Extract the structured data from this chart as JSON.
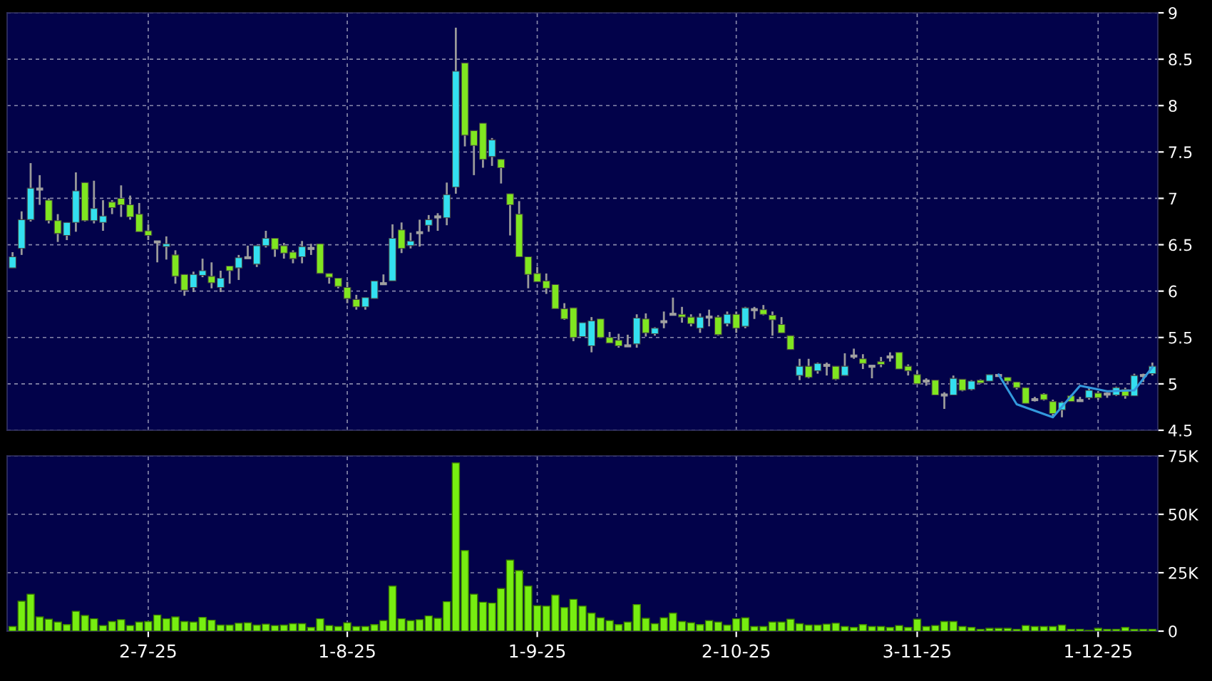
{
  "chart_data": [
    {
      "type": "candlestick",
      "categories": [
        null,
        null,
        null,
        null,
        null,
        null,
        null,
        null,
        null,
        null,
        null,
        null,
        null,
        null,
        null,
        null,
        null,
        null,
        null,
        null,
        null,
        null,
        null,
        null,
        null,
        null,
        null,
        null,
        null,
        null,
        null,
        null,
        null,
        null,
        null,
        null,
        null,
        null,
        null,
        null,
        null,
        null,
        null,
        null,
        null,
        null,
        null,
        null,
        null,
        null,
        null,
        null,
        null,
        null,
        null,
        null,
        null,
        null,
        null,
        null,
        null,
        null,
        null,
        null,
        null,
        null,
        null,
        null,
        null,
        null,
        null,
        null,
        null,
        null,
        null,
        null,
        null,
        null,
        null,
        null,
        null,
        null,
        null,
        null,
        null,
        null,
        null,
        null,
        null,
        null,
        null,
        null,
        null,
        null,
        null,
        null,
        null,
        null,
        null,
        null,
        null,
        null,
        null,
        null,
        null,
        null,
        null,
        null,
        null,
        null,
        null,
        null,
        null,
        null,
        null,
        null,
        null,
        null,
        null,
        null,
        null,
        null,
        null,
        null,
        null,
        null,
        null
      ],
      "ohlc": [
        [
          6.25,
          6.42,
          6.25,
          6.37
        ],
        [
          6.46,
          6.86,
          6.39,
          6.77
        ],
        [
          6.77,
          7.38,
          6.75,
          7.11
        ],
        [
          7.1,
          7.25,
          6.93,
          7.1
        ],
        [
          6.98,
          7.0,
          6.73,
          6.76
        ],
        [
          6.76,
          6.83,
          6.53,
          6.62
        ],
        [
          6.6,
          6.74,
          6.55,
          6.74
        ],
        [
          6.74,
          7.28,
          6.64,
          7.08
        ],
        [
          7.17,
          7.17,
          6.75,
          6.76
        ],
        [
          6.76,
          7.19,
          6.73,
          6.89
        ],
        [
          6.74,
          6.98,
          6.65,
          6.81
        ],
        [
          6.96,
          6.98,
          6.83,
          6.9
        ],
        [
          7.0,
          7.14,
          6.8,
          6.93
        ],
        [
          6.93,
          7.03,
          6.77,
          6.8
        ],
        [
          6.83,
          6.95,
          6.64,
          6.64
        ],
        [
          6.65,
          6.72,
          6.55,
          6.6
        ],
        [
          6.53,
          6.54,
          6.31,
          6.53
        ],
        [
          6.48,
          6.59,
          6.34,
          6.51
        ],
        [
          6.39,
          6.44,
          6.08,
          6.16
        ],
        [
          6.18,
          6.18,
          5.95,
          6.01
        ],
        [
          6.04,
          6.21,
          5.99,
          6.18
        ],
        [
          6.17,
          6.35,
          6.15,
          6.22
        ],
        [
          6.16,
          6.31,
          6.03,
          6.09
        ],
        [
          6.04,
          6.22,
          5.99,
          6.14
        ],
        [
          6.27,
          6.27,
          6.08,
          6.22
        ],
        [
          6.25,
          6.39,
          6.12,
          6.36
        ],
        [
          6.36,
          6.49,
          6.35,
          6.36
        ],
        [
          6.29,
          6.49,
          6.26,
          6.49
        ],
        [
          6.49,
          6.65,
          6.47,
          6.57
        ],
        [
          6.57,
          6.57,
          6.37,
          6.45
        ],
        [
          6.49,
          6.52,
          6.35,
          6.41
        ],
        [
          6.42,
          6.44,
          6.3,
          6.35
        ],
        [
          6.37,
          6.54,
          6.3,
          6.48
        ],
        [
          6.46,
          6.51,
          6.39,
          6.46
        ],
        [
          6.51,
          6.51,
          6.19,
          6.19
        ],
        [
          6.19,
          6.19,
          6.08,
          6.15
        ],
        [
          6.14,
          6.14,
          6.03,
          6.05
        ],
        [
          6.04,
          6.1,
          5.87,
          5.92
        ],
        [
          5.91,
          5.96,
          5.8,
          5.83
        ],
        [
          5.83,
          5.93,
          5.8,
          5.93
        ],
        [
          5.92,
          6.11,
          5.92,
          6.11
        ],
        [
          6.08,
          6.18,
          6.08,
          6.08
        ],
        [
          6.11,
          6.72,
          6.11,
          6.57
        ],
        [
          6.66,
          6.74,
          6.41,
          6.46
        ],
        [
          6.49,
          6.63,
          6.46,
          6.54
        ],
        [
          6.63,
          6.77,
          6.48,
          6.63
        ],
        [
          6.71,
          6.82,
          6.64,
          6.77
        ],
        [
          6.8,
          6.84,
          6.65,
          6.8
        ],
        [
          6.79,
          7.17,
          6.71,
          7.04
        ],
        [
          7.12,
          8.84,
          7.05,
          8.37
        ],
        [
          8.46,
          8.46,
          7.56,
          7.68
        ],
        [
          7.73,
          7.73,
          7.25,
          7.57
        ],
        [
          7.81,
          7.81,
          7.33,
          7.42
        ],
        [
          7.45,
          7.65,
          7.35,
          7.63
        ],
        [
          7.42,
          7.42,
          7.16,
          7.33
        ],
        [
          7.05,
          7.05,
          6.6,
          6.93
        ],
        [
          6.83,
          6.97,
          6.37,
          6.37
        ],
        [
          6.37,
          6.37,
          6.03,
          6.18
        ],
        [
          6.19,
          6.26,
          6.1,
          6.1
        ],
        [
          6.11,
          6.19,
          5.97,
          6.03
        ],
        [
          6.07,
          6.07,
          5.81,
          5.81
        ],
        [
          5.81,
          5.87,
          5.69,
          5.7
        ],
        [
          5.82,
          5.82,
          5.46,
          5.5
        ],
        [
          5.51,
          5.66,
          5.51,
          5.66
        ],
        [
          5.41,
          5.72,
          5.34,
          5.68
        ],
        [
          5.7,
          5.7,
          5.5,
          5.5
        ],
        [
          5.5,
          5.56,
          5.44,
          5.44
        ],
        [
          5.47,
          5.54,
          5.39,
          5.41
        ],
        [
          5.41,
          5.53,
          5.41,
          5.41
        ],
        [
          5.43,
          5.75,
          5.39,
          5.71
        ],
        [
          5.7,
          5.76,
          5.51,
          5.55
        ],
        [
          5.54,
          5.61,
          5.52,
          5.6
        ],
        [
          5.67,
          5.78,
          5.6,
          5.67
        ],
        [
          5.75,
          5.93,
          5.74,
          5.75
        ],
        [
          5.75,
          5.83,
          5.66,
          5.72
        ],
        [
          5.72,
          5.75,
          5.62,
          5.65
        ],
        [
          5.6,
          5.76,
          5.55,
          5.72
        ],
        [
          5.72,
          5.8,
          5.62,
          5.72
        ],
        [
          5.72,
          5.74,
          5.52,
          5.53
        ],
        [
          5.65,
          5.78,
          5.62,
          5.75
        ],
        [
          5.75,
          5.78,
          5.55,
          5.6
        ],
        [
          5.62,
          5.83,
          5.6,
          5.82
        ],
        [
          5.8,
          5.83,
          5.7,
          5.8
        ],
        [
          5.8,
          5.85,
          5.74,
          5.75
        ],
        [
          5.74,
          5.78,
          5.52,
          5.69
        ],
        [
          5.64,
          5.72,
          5.55,
          5.55
        ],
        [
          5.52,
          5.52,
          5.37,
          5.37
        ],
        [
          5.09,
          5.27,
          5.04,
          5.19
        ],
        [
          5.19,
          5.27,
          5.06,
          5.07
        ],
        [
          5.14,
          5.23,
          5.11,
          5.22
        ],
        [
          5.2,
          5.23,
          5.09,
          5.2
        ],
        [
          5.19,
          5.19,
          5.04,
          5.05
        ],
        [
          5.09,
          5.33,
          5.09,
          5.19
        ],
        [
          5.3,
          5.38,
          5.27,
          5.3
        ],
        [
          5.27,
          5.32,
          5.16,
          5.22
        ],
        [
          5.19,
          5.2,
          5.06,
          5.19
        ],
        [
          5.24,
          5.29,
          5.18,
          5.21
        ],
        [
          5.29,
          5.34,
          5.24,
          5.29
        ],
        [
          5.34,
          5.34,
          5.16,
          5.16
        ],
        [
          5.19,
          5.21,
          5.09,
          5.14
        ],
        [
          5.1,
          5.14,
          5.0,
          5.0
        ],
        [
          5.03,
          5.06,
          4.98,
          5.03
        ],
        [
          5.04,
          5.04,
          4.88,
          4.88
        ],
        [
          4.88,
          4.91,
          4.73,
          4.88
        ],
        [
          4.88,
          5.09,
          4.88,
          5.06
        ],
        [
          5.05,
          5.05,
          4.92,
          4.93
        ],
        [
          4.94,
          5.04,
          4.93,
          5.03
        ],
        [
          5.04,
          5.05,
          5.0,
          5.01
        ],
        [
          5.03,
          5.1,
          5.03,
          5.1
        ],
        [
          5.09,
          5.1,
          5.08,
          5.09
        ],
        [
          5.07,
          5.07,
          5.01,
          5.03
        ],
        [
          5.02,
          5.02,
          4.94,
          4.96
        ],
        [
          4.96,
          4.96,
          4.79,
          4.79
        ],
        [
          4.83,
          4.86,
          4.81,
          4.83
        ],
        [
          4.89,
          4.9,
          4.82,
          4.83
        ],
        [
          4.81,
          4.83,
          4.65,
          4.68
        ],
        [
          4.72,
          4.81,
          4.64,
          4.8
        ],
        [
          4.87,
          4.88,
          4.81,
          4.81
        ],
        [
          4.82,
          4.86,
          4.81,
          4.82
        ],
        [
          4.85,
          4.96,
          4.83,
          4.93
        ],
        [
          4.9,
          4.92,
          4.83,
          4.85
        ],
        [
          4.89,
          4.91,
          4.85,
          4.89
        ],
        [
          4.88,
          4.97,
          4.87,
          4.96
        ],
        [
          4.94,
          4.96,
          4.84,
          4.87
        ],
        [
          4.87,
          5.11,
          4.87,
          5.09
        ],
        [
          5.09,
          5.11,
          5.02,
          5.09
        ],
        [
          5.11,
          5.23,
          5.09,
          5.19
        ]
      ],
      "colors": [
        "#33e0f0",
        "#33e0f0",
        "#33e0f0",
        "#a0a0a0",
        "#80e620",
        "#80e620",
        "#33e0f0",
        "#33e0f0",
        "#80e620",
        "#33e0f0",
        "#33e0f0",
        "#80e620",
        "#80e620",
        "#80e620",
        "#80e620",
        "#80e620",
        "#a0a0a0",
        "#33e0f0",
        "#80e620",
        "#80e620",
        "#33e0f0",
        "#33e0f0",
        "#80e620",
        "#33e0f0",
        "#80e620",
        "#33e0f0",
        "#a0a0a0",
        "#33e0f0",
        "#33e0f0",
        "#80e620",
        "#80e620",
        "#80e620",
        "#33e0f0",
        "#a0a0a0",
        "#80e620",
        "#80e620",
        "#80e620",
        "#80e620",
        "#80e620",
        "#33e0f0",
        "#33e0f0",
        "#a0a0a0",
        "#33e0f0",
        "#80e620",
        "#33e0f0",
        "#a0a0a0",
        "#33e0f0",
        "#a0a0a0",
        "#33e0f0",
        "#33e0f0",
        "#80e620",
        "#80e620",
        "#80e620",
        "#33e0f0",
        "#80e620",
        "#80e620",
        "#80e620",
        "#80e620",
        "#80e620",
        "#80e620",
        "#80e620",
        "#80e620",
        "#80e620",
        "#33e0f0",
        "#33e0f0",
        "#80e620",
        "#80e620",
        "#80e620",
        "#a0a0a0",
        "#33e0f0",
        "#80e620",
        "#33e0f0",
        "#a0a0a0",
        "#a0a0a0",
        "#80e620",
        "#80e620",
        "#33e0f0",
        "#a0a0a0",
        "#80e620",
        "#33e0f0",
        "#80e620",
        "#33e0f0",
        "#a0a0a0",
        "#80e620",
        "#80e620",
        "#80e620",
        "#80e620",
        "#33e0f0",
        "#80e620",
        "#33e0f0",
        "#a0a0a0",
        "#80e620",
        "#33e0f0",
        "#a0a0a0",
        "#80e620",
        "#a0a0a0",
        "#80e620",
        "#a0a0a0",
        "#80e620",
        "#80e620",
        "#80e620",
        "#a0a0a0",
        "#80e620",
        "#a0a0a0",
        "#33e0f0",
        "#80e620",
        "#33e0f0",
        "#80e620",
        "#33e0f0",
        "#a0a0a0",
        "#80e620",
        "#80e620",
        "#80e620",
        "#a0a0a0",
        "#80e620",
        "#80e620",
        "#33e0f0",
        "#80e620",
        "#a0a0a0",
        "#33e0f0",
        "#80e620",
        "#a0a0a0",
        "#33e0f0",
        "#80e620",
        "#33e0f0",
        "#a0a0a0",
        "#33e0f0"
      ],
      "series": [
        {
          "type": "line",
          "color": "#3399dd",
          "values": [
            null,
            null,
            null,
            null,
            null,
            null,
            null,
            null,
            null,
            null,
            null,
            null,
            null,
            null,
            null,
            null,
            null,
            null,
            null,
            null,
            null,
            null,
            null,
            null,
            null,
            null,
            null,
            null,
            null,
            null,
            null,
            null,
            null,
            null,
            null,
            null,
            null,
            null,
            null,
            null,
            null,
            null,
            null,
            null,
            null,
            null,
            null,
            null,
            null,
            null,
            null,
            null,
            null,
            null,
            null,
            null,
            null,
            null,
            null,
            null,
            null,
            null,
            null,
            null,
            null,
            null,
            null,
            null,
            null,
            null,
            null,
            null,
            null,
            null,
            null,
            null,
            null,
            null,
            null,
            null,
            null,
            null,
            null,
            null,
            null,
            null,
            null,
            null,
            null,
            null,
            null,
            null,
            null,
            null,
            null,
            null,
            null,
            null,
            null,
            null,
            null,
            null,
            null,
            null,
            null,
            null,
            null,
            null,
            null,
            5.1,
            null,
            4.78,
            null,
            null,
            null,
            4.64,
            null,
            null,
            4.98,
            null,
            null,
            4.92,
            null,
            null,
            4.93,
            null,
            5.18
          ]
        }
      ],
      "ylim": [
        4.5,
        9
      ],
      "yticks": [
        4.5,
        5,
        5.5,
        6,
        6.5,
        7,
        7.5,
        8,
        8.5,
        9
      ],
      "grid": true,
      "tick_labels": "y"
    },
    {
      "type": "bar",
      "categories": [
        null,
        null,
        null,
        null,
        null,
        null,
        null,
        null,
        null,
        null,
        null,
        null,
        null,
        null,
        null,
        "2-7-25",
        null,
        null,
        null,
        null,
        null,
        null,
        null,
        null,
        null,
        null,
        null,
        null,
        null,
        null,
        null,
        null,
        null,
        null,
        null,
        null,
        null,
        "1-8-25",
        null,
        null,
        null,
        null,
        null,
        null,
        null,
        null,
        null,
        null,
        null,
        null,
        null,
        null,
        null,
        null,
        null,
        null,
        null,
        null,
        "1-9-25",
        null,
        null,
        null,
        null,
        null,
        null,
        null,
        null,
        null,
        null,
        null,
        null,
        null,
        null,
        null,
        null,
        null,
        null,
        null,
        null,
        null,
        "2-10-25",
        null,
        null,
        null,
        null,
        null,
        null,
        null,
        null,
        null,
        null,
        null,
        null,
        null,
        null,
        null,
        null,
        null,
        null,
        null,
        "3-11-25",
        null,
        null,
        null,
        null,
        null,
        null,
        null,
        null,
        null,
        null,
        null,
        null,
        null,
        null,
        null,
        null,
        null,
        null,
        null,
        "1-12-25",
        null,
        null,
        null,
        null,
        null,
        null
      ],
      "color": "#77ee11",
      "values": [
        2000,
        12800,
        15800,
        6100,
        5100,
        3900,
        2800,
        8500,
        6700,
        5300,
        2400,
        4100,
        4900,
        2400,
        3900,
        4100,
        6900,
        5300,
        6100,
        4100,
        3900,
        5900,
        4700,
        2600,
        2600,
        3400,
        3600,
        2600,
        3000,
        2400,
        2600,
        3200,
        3200,
        1600,
        5300,
        2400,
        2000,
        3600,
        2000,
        2000,
        2800,
        4500,
        19300,
        5300,
        4500,
        4900,
        6500,
        5500,
        12600,
        72000,
        34500,
        15800,
        12400,
        12000,
        18200,
        30400,
        25900,
        19300,
        10900,
        10700,
        15400,
        10100,
        13600,
        10700,
        7700,
        5700,
        4500,
        2800,
        3900,
        11400,
        5500,
        3200,
        5700,
        7700,
        4100,
        3600,
        2800,
        4500,
        3900,
        2600,
        5300,
        5700,
        2000,
        2000,
        3900,
        3900,
        5100,
        3200,
        2600,
        2600,
        3000,
        3400,
        2000,
        1600,
        2800,
        2000,
        2000,
        1600,
        2400,
        1600,
        5100,
        2000,
        2400,
        4100,
        4100,
        2000,
        1600,
        800,
        1200,
        1200,
        1200,
        800,
        2400,
        2000,
        2000,
        2000,
        2600,
        800,
        800,
        400,
        1200,
        800,
        800,
        1600,
        800,
        800,
        800
      ],
      "ylim": [
        0,
        75000
      ],
      "yticks": [
        0,
        {
          "value": 25000,
          "label": "25K"
        },
        {
          "value": 50000,
          "label": "50K"
        },
        {
          "value": 75000,
          "label": "75K"
        }
      ],
      "grid": true
    }
  ]
}
